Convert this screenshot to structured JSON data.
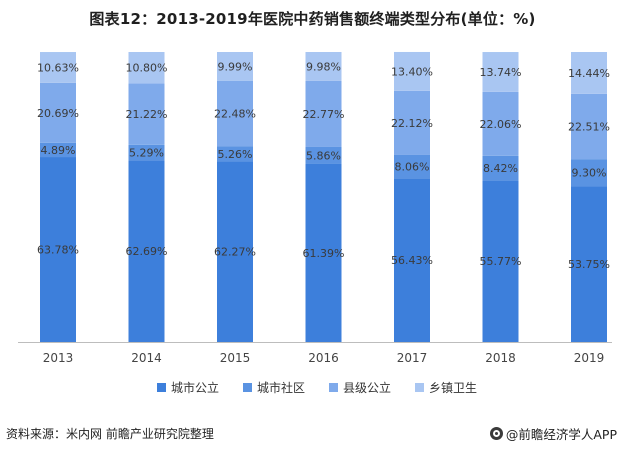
{
  "chart_data": {
    "type": "bar",
    "stacked": true,
    "title": "图表12：2013-2019年医院中药销售额终端类型分布(单位：%)",
    "categories": [
      "2013",
      "2014",
      "2015",
      "2016",
      "2017",
      "2018",
      "2019"
    ],
    "series": [
      {
        "name": "城市公立",
        "color": "#3d7fdb",
        "values": [
          63.78,
          62.69,
          62.27,
          61.39,
          56.43,
          55.77,
          53.75
        ]
      },
      {
        "name": "城市社区",
        "color": "#5a93e2",
        "values": [
          4.89,
          5.29,
          5.26,
          5.86,
          8.06,
          8.42,
          9.3
        ]
      },
      {
        "name": "县级公立",
        "color": "#7faaeb",
        "values": [
          20.69,
          21.22,
          22.48,
          22.77,
          22.12,
          22.06,
          22.51
        ]
      },
      {
        "name": "乡镇卫生",
        "color": "#a9c6f2",
        "values": [
          10.63,
          10.8,
          9.99,
          9.98,
          13.4,
          13.74,
          14.44
        ]
      }
    ],
    "ylim": [
      0,
      100
    ],
    "legend_position": "bottom"
  },
  "footer": {
    "source": "资料来源：米内网 前瞻产业研究院整理",
    "brand": "@前瞻经济学人APP"
  }
}
